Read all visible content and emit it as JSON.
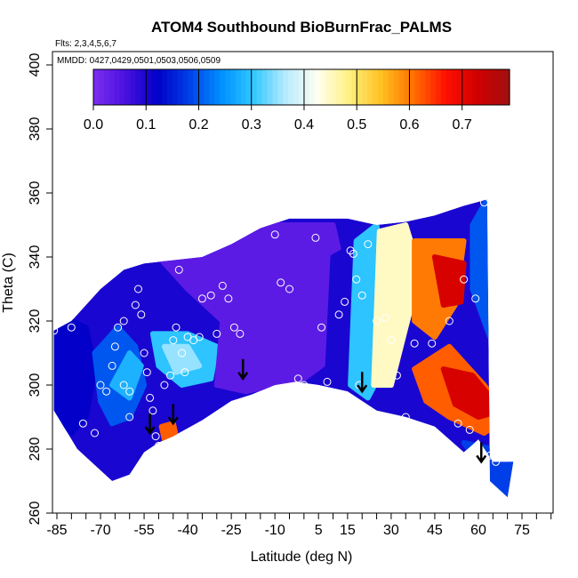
{
  "chart_data": {
    "type": "heatmap",
    "title": "ATOM4 Southbound BioBurnFrac_PALMS",
    "flights_note": "Flts: 2,3,4,5,6,7",
    "dates_note": "MMDD: 0427,0429,0501,0503,0506,0509",
    "xlabel": "Latitude (deg N)",
    "ylabel": "Theta (C)",
    "xlim": [
      -88,
      87
    ],
    "ylim": [
      260,
      403
    ],
    "x_ticks": [
      -85,
      -70,
      -55,
      -40,
      -25,
      -10,
      5,
      15,
      30,
      45,
      60,
      75
    ],
    "x_tick_labels": [
      "-85",
      "-70",
      "-55",
      "-40",
      "-25",
      "-10",
      "5",
      "15",
      "30",
      "45",
      "60",
      "75"
    ],
    "y_ticks": [
      260,
      280,
      300,
      320,
      340,
      360,
      380,
      400
    ],
    "y_tick_labels": [
      "260",
      "280",
      "300",
      "320",
      "340",
      "360",
      "380",
      "400"
    ],
    "colorbar": {
      "min": 0.0,
      "max": 0.79,
      "ticks": [
        0.0,
        0.1,
        0.2,
        0.3,
        0.4,
        0.5,
        0.6,
        0.7
      ],
      "tick_labels": [
        "0.0",
        "0.1",
        "0.2",
        "0.3",
        "0.4",
        "0.5",
        "0.6",
        "0.7"
      ],
      "colors": [
        "#7b2ff0",
        "#4a10e0",
        "#0000c8",
        "#0040e8",
        "#0090ff",
        "#30c8ff",
        "#b8eaff",
        "#fffff0",
        "#fff080",
        "#ffc020",
        "#ff7000",
        "#ff1000",
        "#d00000",
        "#a01010"
      ]
    },
    "boundary_upper": [
      [
        -86,
        317
      ],
      [
        -80,
        320
      ],
      [
        -70,
        330
      ],
      [
        -62,
        336
      ],
      [
        -55,
        338
      ],
      [
        -45,
        339
      ],
      [
        -35,
        340
      ],
      [
        -25,
        344
      ],
      [
        -15,
        349
      ],
      [
        -5,
        352
      ],
      [
        5,
        352
      ],
      [
        15,
        352
      ],
      [
        25,
        350
      ],
      [
        35,
        351
      ],
      [
        45,
        353
      ],
      [
        55,
        356
      ],
      [
        63,
        358
      ]
    ],
    "boundary_lower": [
      [
        64,
        270
      ],
      [
        70,
        265
      ],
      [
        72,
        276
      ],
      [
        65,
        276
      ],
      [
        60,
        283
      ],
      [
        55,
        279
      ],
      [
        45,
        287
      ],
      [
        35,
        290
      ],
      [
        25,
        292
      ],
      [
        15,
        298
      ],
      [
        5,
        300
      ],
      [
        -3,
        301
      ],
      [
        -10,
        300
      ],
      [
        -18,
        297
      ],
      [
        -25,
        295
      ],
      [
        -35,
        289
      ],
      [
        -45,
        284
      ],
      [
        -50,
        282
      ],
      [
        -55,
        279
      ],
      [
        -60,
        272
      ],
      [
        -66,
        270
      ],
      [
        -72,
        275
      ],
      [
        -78,
        280
      ],
      [
        -82,
        286
      ],
      [
        -86,
        292
      ]
    ],
    "patches": [
      {
        "region": "south-pole-blue",
        "value": 0.12,
        "points": [
          [
            -86,
            317
          ],
          [
            -80,
            320
          ],
          [
            -75,
            318
          ],
          [
            -72,
            305
          ],
          [
            -75,
            290
          ],
          [
            -80,
            285
          ],
          [
            -86,
            292
          ]
        ]
      },
      {
        "region": "southern-blue-band",
        "value": 0.2,
        "points": [
          [
            -72,
            310
          ],
          [
            -64,
            318
          ],
          [
            -58,
            312
          ],
          [
            -55,
            300
          ],
          [
            -60,
            290
          ],
          [
            -66,
            288
          ],
          [
            -70,
            295
          ]
        ]
      },
      {
        "region": "southern-cyan-wedge",
        "value": 0.28,
        "points": [
          [
            -66,
            300
          ],
          [
            -60,
            310
          ],
          [
            -56,
            306
          ],
          [
            -60,
            296
          ]
        ]
      },
      {
        "region": "mid-south-cyan",
        "value": 0.3,
        "points": [
          [
            -52,
            316
          ],
          [
            -40,
            316
          ],
          [
            -30,
            312
          ],
          [
            -32,
            302
          ],
          [
            -42,
            300
          ],
          [
            -50,
            306
          ]
        ]
      },
      {
        "region": "mid-south-lightblue",
        "value": 0.35,
        "points": [
          [
            -48,
            312
          ],
          [
            -40,
            312
          ],
          [
            -36,
            306
          ],
          [
            -44,
            304
          ]
        ]
      },
      {
        "region": "tropical-purple",
        "value": 0.04,
        "points": [
          [
            -50,
            340
          ],
          [
            -10,
            350
          ],
          [
            10,
            350
          ],
          [
            15,
            330
          ],
          [
            12,
            310
          ],
          [
            0,
            302
          ],
          [
            -20,
            298
          ],
          [
            -30,
            300
          ],
          [
            -28,
            320
          ],
          [
            -40,
            330
          ]
        ]
      },
      {
        "region": "tropical-blue",
        "value": 0.1,
        "points": [
          [
            10,
            340
          ],
          [
            20,
            345
          ],
          [
            18,
            320
          ],
          [
            15,
            305
          ],
          [
            8,
            302
          ]
        ]
      },
      {
        "region": "northern-cyan",
        "value": 0.3,
        "points": [
          [
            18,
            345
          ],
          [
            25,
            350
          ],
          [
            28,
            330
          ],
          [
            30,
            310
          ],
          [
            22,
            296
          ],
          [
            16,
            300
          ]
        ]
      },
      {
        "region": "northern-lightyellow",
        "value": 0.45,
        "points": [
          [
            26,
            348
          ],
          [
            35,
            350
          ],
          [
            40,
            335
          ],
          [
            35,
            318
          ],
          [
            30,
            300
          ],
          [
            24,
            300
          ]
        ]
      },
      {
        "region": "northern-orange",
        "value": 0.6,
        "points": [
          [
            38,
            345
          ],
          [
            55,
            345
          ],
          [
            52,
            325
          ],
          [
            45,
            315
          ],
          [
            38,
            320
          ]
        ]
      },
      {
        "region": "northern-red-upper",
        "value": 0.72,
        "points": [
          [
            45,
            340
          ],
          [
            55,
            338
          ],
          [
            54,
            326
          ],
          [
            48,
            325
          ]
        ]
      },
      {
        "region": "northern-orange-lower",
        "value": 0.62,
        "points": [
          [
            38,
            305
          ],
          [
            50,
            312
          ],
          [
            62,
            300
          ],
          [
            70,
            290
          ],
          [
            62,
            285
          ],
          [
            50,
            290
          ],
          [
            42,
            295
          ]
        ]
      },
      {
        "region": "northern-red-lower",
        "value": 0.72,
        "points": [
          [
            48,
            305
          ],
          [
            58,
            303
          ],
          [
            68,
            292
          ],
          [
            60,
            290
          ],
          [
            52,
            294
          ]
        ]
      },
      {
        "region": "arctic-blue",
        "value": 0.2,
        "points": [
          [
            58,
            350
          ],
          [
            63,
            358
          ],
          [
            66,
            340
          ],
          [
            68,
            320
          ],
          [
            64,
            315
          ],
          [
            58,
            330
          ]
        ]
      },
      {
        "region": "arctic-lower-blue",
        "value": 0.18,
        "points": [
          [
            55,
            282
          ],
          [
            65,
            280
          ],
          [
            72,
            276
          ],
          [
            70,
            265
          ],
          [
            64,
            270
          ]
        ]
      },
      {
        "region": "southern-hotspot",
        "value": 0.62,
        "points": [
          [
            -49,
            287
          ],
          [
            -45,
            288
          ],
          [
            -44,
            284
          ],
          [
            -48,
            283
          ]
        ]
      }
    ],
    "sample_points": [
      [
        -86,
        317
      ],
      [
        -80,
        318
      ],
      [
        -76,
        288
      ],
      [
        -72,
        285
      ],
      [
        -70,
        300
      ],
      [
        -68,
        298
      ],
      [
        -66,
        306
      ],
      [
        -65,
        312
      ],
      [
        -64,
        318
      ],
      [
        -62,
        320
      ],
      [
        -62,
        300
      ],
      [
        -60,
        298
      ],
      [
        -60,
        290
      ],
      [
        -58,
        325
      ],
      [
        -57,
        330
      ],
      [
        -56,
        322
      ],
      [
        -55,
        310
      ],
      [
        -54,
        304
      ],
      [
        -53,
        296
      ],
      [
        -52,
        292
      ],
      [
        -51,
        284
      ],
      [
        -50,
        281
      ],
      [
        -48,
        300
      ],
      [
        -46,
        303
      ],
      [
        -45,
        314
      ],
      [
        -44,
        318
      ],
      [
        -43,
        336
      ],
      [
        -42,
        310
      ],
      [
        -41,
        304
      ],
      [
        -40,
        315
      ],
      [
        -38,
        314
      ],
      [
        -36,
        315
      ],
      [
        -35,
        327
      ],
      [
        -32,
        328
      ],
      [
        -30,
        316
      ],
      [
        -28,
        331
      ],
      [
        -26,
        327
      ],
      [
        -24,
        318
      ],
      [
        -22,
        316
      ],
      [
        -18,
        350
      ],
      [
        -16,
        352
      ],
      [
        -10,
        347
      ],
      [
        -8,
        332
      ],
      [
        -5,
        330
      ],
      [
        -2,
        302
      ],
      [
        0,
        300
      ],
      [
        4,
        346
      ],
      [
        6,
        318
      ],
      [
        8,
        301
      ],
      [
        12,
        322
      ],
      [
        14,
        326
      ],
      [
        16,
        342
      ],
      [
        17,
        341
      ],
      [
        18,
        333
      ],
      [
        19,
        300
      ],
      [
        20,
        328
      ],
      [
        22,
        344
      ],
      [
        25,
        320
      ],
      [
        28,
        321
      ],
      [
        30,
        314
      ],
      [
        32,
        303
      ],
      [
        35,
        290
      ],
      [
        38,
        313
      ],
      [
        44,
        313
      ],
      [
        50,
        320
      ],
      [
        53,
        288
      ],
      [
        55,
        333
      ],
      [
        57,
        286
      ],
      [
        59,
        327
      ],
      [
        62,
        357
      ],
      [
        64,
        278
      ],
      [
        66,
        276
      ]
    ],
    "arrows": [
      [
        -53,
        285
      ],
      [
        -45,
        288
      ],
      [
        -21,
        302
      ],
      [
        20,
        298
      ],
      [
        61,
        276
      ]
    ]
  }
}
